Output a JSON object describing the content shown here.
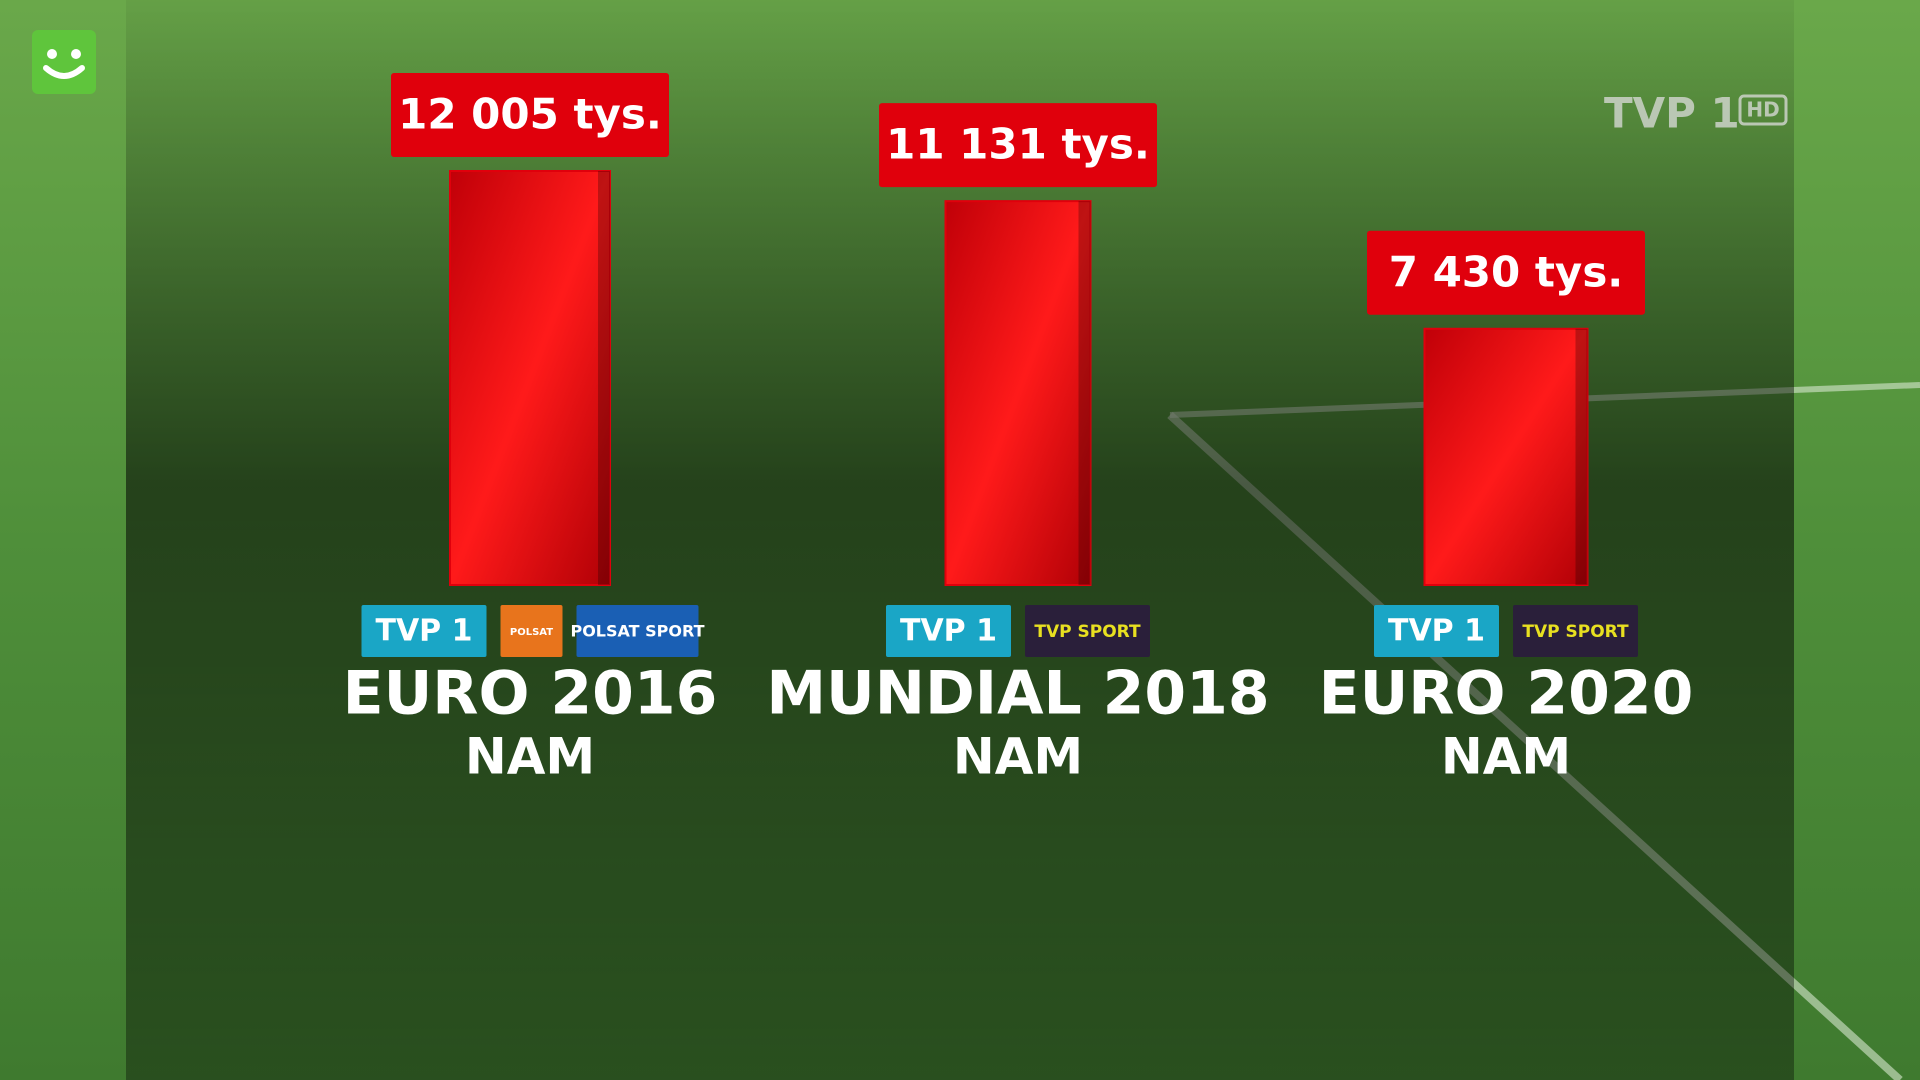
{
  "chart_data": {
    "type": "bar",
    "categories": [
      "EURO 2016",
      "MUNDIAL 2018",
      "EURO 2020"
    ],
    "sublabels": [
      "NAM",
      "NAM",
      "NAM"
    ],
    "values": [
      12005,
      11131,
      7430
    ],
    "value_labels": [
      "12 005 tys.",
      "11 131 tys.",
      "7 430 tys."
    ],
    "color": "#e0000c",
    "broadcasters": [
      [
        "TVP 1",
        "POLSAT",
        "POLSAT SPORT"
      ],
      [
        "TVP 1",
        "TVP SPORT"
      ],
      [
        "TVP 1",
        "TVP SPORT"
      ]
    ]
  },
  "channel_logo": {
    "name": "TVP 1",
    "badge": "HD"
  }
}
